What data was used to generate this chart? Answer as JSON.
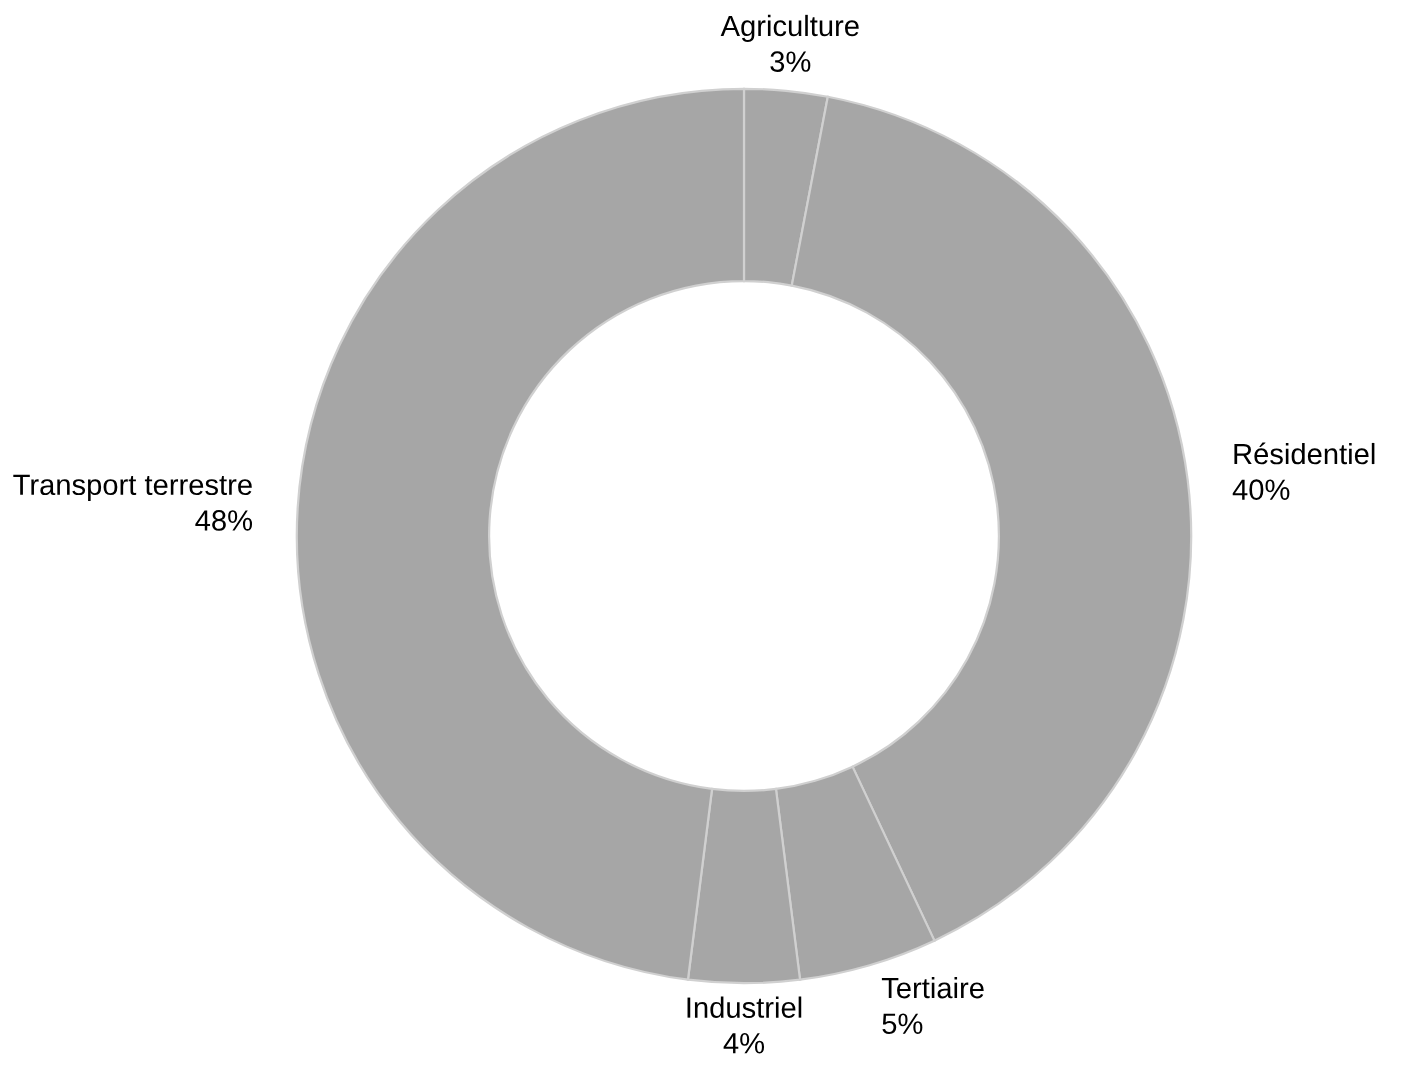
{
  "chart_data": {
    "type": "donut",
    "categories": [
      "Agriculture",
      "Résidentiel",
      "Tertiaire",
      "Industriel",
      "Transport terrestre"
    ],
    "values": [
      3,
      40,
      5,
      4,
      48
    ],
    "value_labels": [
      "3%",
      "40%",
      "5%",
      "4%",
      "48%"
    ],
    "colors": [
      "#a6a6a6",
      "#a6a6a6",
      "#a6a6a6",
      "#a6a6a6",
      "#a6a6a6"
    ],
    "legend": false
  }
}
